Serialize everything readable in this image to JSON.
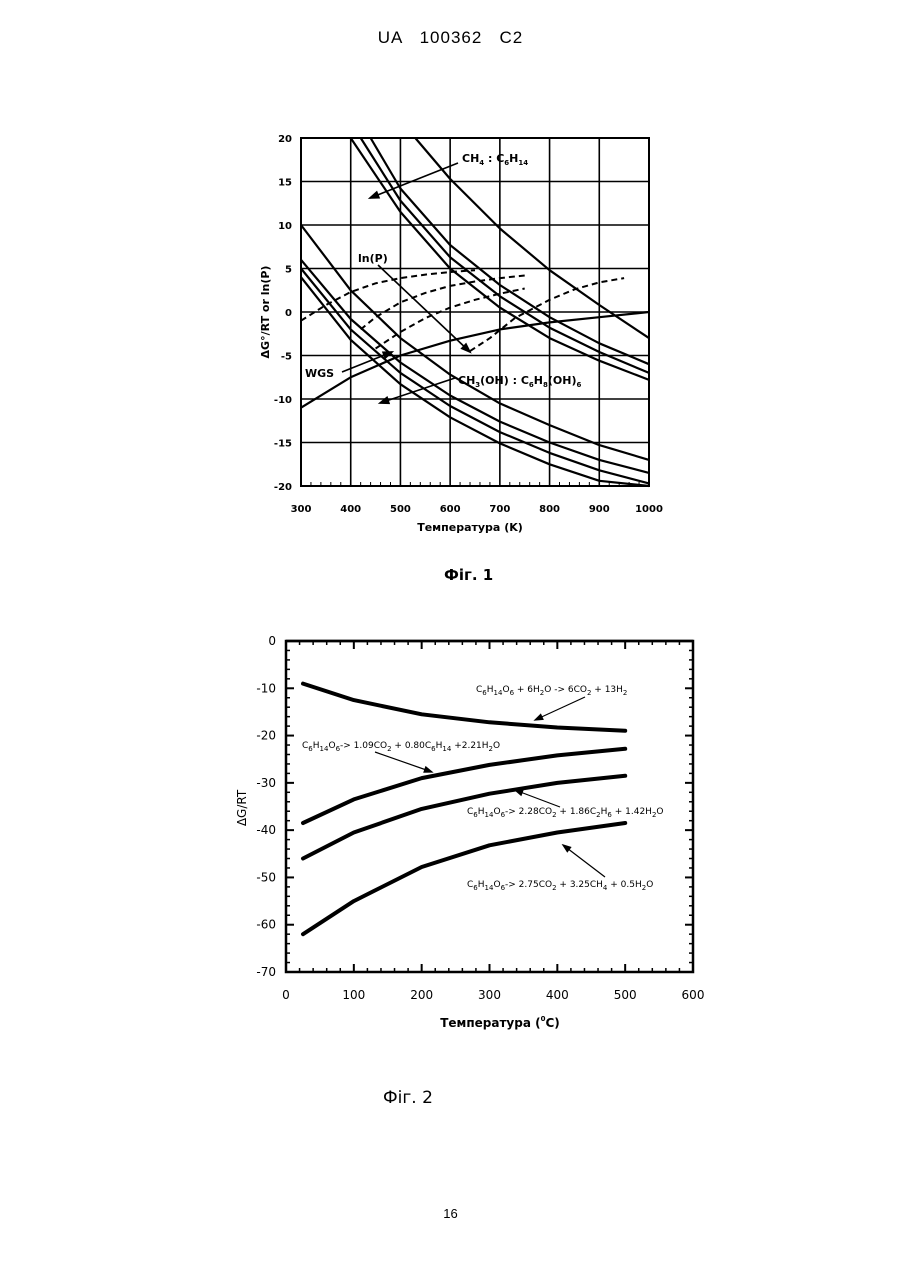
{
  "header": {
    "text": "UA   100362   C2"
  },
  "page_number": "16",
  "figures": [
    {
      "caption": "Фіг. 1"
    },
    {
      "caption": "Фіг. 2"
    }
  ],
  "chart_data": [
    {
      "type": "line",
      "xlabel": "Температура (K)",
      "ylabel": "ΔG°/RT or ln(P)",
      "xlim": [
        300,
        1000
      ],
      "ylim": [
        -20,
        20
      ],
      "xticks": [
        "300",
        "400",
        "500",
        "600",
        "700",
        "800",
        "900",
        "1000"
      ],
      "yticks": [
        "20",
        "15",
        "10",
        "5",
        "0",
        "-5",
        "-10",
        "-15",
        "-20"
      ],
      "grid": true,
      "annotations": [
        {
          "text": "CH",
          "sub": "4",
          "text2": " : C",
          "sub2": "6",
          "text3": "H",
          "sub3": "14"
        },
        {
          "text": "ln(P)"
        },
        {
          "text": "WGS"
        },
        {
          "text": "CH",
          "sub": "3",
          "text2": "(OH) : C",
          "sub2": "6",
          "text3": "H",
          "sub3": "8",
          "text4": "(OH)",
          "sub4": "6"
        }
      ],
      "series": [
        {
          "style": "solid",
          "x": [
            400,
            500,
            600,
            700,
            800,
            900,
            1000
          ],
          "y": [
            20,
            11.5,
            5,
            0.5,
            -3,
            -5.6,
            -7.8
          ]
        },
        {
          "style": "solid",
          "x": [
            420,
            500,
            600,
            700,
            800,
            900,
            1000
          ],
          "y": [
            20,
            12.8,
            6.3,
            1.8,
            -1.8,
            -4.6,
            -7
          ]
        },
        {
          "style": "solid",
          "x": [
            440,
            500,
            600,
            700,
            800,
            900,
            1000
          ],
          "y": [
            20,
            14.2,
            7.7,
            3.1,
            -0.6,
            -3.6,
            -6
          ]
        },
        {
          "style": "solid",
          "x": [
            530,
            600,
            700,
            800,
            900,
            1000
          ],
          "y": [
            20,
            15.3,
            9.6,
            4.8,
            0.8,
            -3
          ]
        },
        {
          "style": "solid",
          "x": [
            300,
            400,
            500,
            600,
            700,
            800,
            900,
            1000
          ],
          "y": [
            10,
            2.5,
            -3,
            -7.2,
            -10.5,
            -13,
            -15.3,
            -17
          ]
        },
        {
          "style": "solid",
          "x": [
            300,
            400,
            500,
            600,
            700,
            800,
            900,
            1000
          ],
          "y": [
            6,
            -0.8,
            -5.8,
            -9.6,
            -12.6,
            -15,
            -17,
            -18.5
          ]
        },
        {
          "style": "solid",
          "x": [
            300,
            400,
            500,
            600,
            700,
            800,
            900,
            1000
          ],
          "y": [
            5,
            -2,
            -7,
            -10.8,
            -13.8,
            -16.2,
            -18.2,
            -19.7
          ]
        },
        {
          "style": "solid",
          "x": [
            300,
            400,
            500,
            600,
            700,
            800,
            900,
            1000
          ],
          "y": [
            4,
            -3.2,
            -8.3,
            -12.1,
            -15.1,
            -17.5,
            -19.4,
            -20
          ]
        },
        {
          "style": "solid",
          "x": [
            300,
            400,
            500,
            600,
            700,
            800,
            900,
            1000
          ],
          "y": [
            -11,
            -7.5,
            -5,
            -3.3,
            -2,
            -1.2,
            -0.6,
            0
          ]
        },
        {
          "style": "dashed",
          "x": [
            300,
            350,
            400,
            450,
            500,
            550,
            600,
            650
          ],
          "y": [
            -1,
            0.8,
            2.3,
            3.3,
            3.9,
            4.3,
            4.6,
            4.8
          ]
        },
        {
          "style": "dashed",
          "x": [
            420,
            450,
            500,
            550,
            600,
            650,
            700,
            750
          ],
          "y": [
            -2,
            -0.6,
            1.1,
            2.2,
            3.0,
            3.5,
            3.9,
            4.2
          ]
        },
        {
          "style": "dashed",
          "x": [
            450,
            500,
            550,
            600,
            650,
            700,
            750
          ],
          "y": [
            -4.2,
            -2.3,
            -0.7,
            0.5,
            1.4,
            2.1,
            2.7
          ]
        },
        {
          "style": "dashed",
          "x": [
            640,
            680,
            730,
            800,
            850,
            900,
            950
          ],
          "y": [
            -4.5,
            -3,
            -0.7,
            1.4,
            2.6,
            3.4,
            3.9
          ]
        }
      ]
    },
    {
      "type": "line",
      "xlabel": "Температура (",
      "xlabel_sup": "0",
      "xlabel_end": "C)",
      "ylabel": "ΔG/RT",
      "xlim": [
        0,
        600
      ],
      "ylim": [
        -70,
        0
      ],
      "xticks": [
        "0",
        "100",
        "200",
        "300",
        "400",
        "500",
        "600"
      ],
      "yticks": [
        "0",
        "-10",
        "-20",
        "-30",
        "-40",
        "-50",
        "-60",
        "-70"
      ],
      "grid": false,
      "annotations": [
        {
          "parts": [
            "C",
            "6",
            "H",
            "14",
            "O",
            "6",
            " + 6H",
            "2",
            "O -> 6CO",
            "2",
            " + 13H",
            "2"
          ]
        },
        {
          "parts": [
            "C",
            "6",
            "H",
            "14",
            "O",
            "6",
            "-> 1.09CO",
            "2",
            " + 0.80C",
            "6",
            "H",
            "14",
            " +2.21H",
            "2",
            "O"
          ]
        },
        {
          "parts": [
            "C",
            "6",
            "H",
            "14",
            "O",
            "6",
            "-> 2.28CO",
            "2",
            " + 1.86C",
            "2",
            "H",
            "6",
            " + 1.42H",
            "2",
            "O"
          ]
        },
        {
          "parts": [
            "C",
            "6",
            "H",
            "14",
            "O",
            "6",
            "-> 2.75CO",
            "2",
            " + 3.25CH",
            "4",
            " + 0.5H",
            "2",
            "O"
          ]
        }
      ],
      "series": [
        {
          "x": [
            25,
            100,
            200,
            300,
            400,
            500
          ],
          "y": [
            -9,
            -12.5,
            -15.5,
            -17.2,
            -18.3,
            -19
          ]
        },
        {
          "x": [
            25,
            100,
            200,
            300,
            400,
            500
          ],
          "y": [
            -38.5,
            -33.5,
            -29,
            -26.2,
            -24.2,
            -22.8
          ]
        },
        {
          "x": [
            25,
            100,
            200,
            300,
            400,
            500
          ],
          "y": [
            -46,
            -40.5,
            -35.5,
            -32.3,
            -30,
            -28.5
          ]
        },
        {
          "x": [
            25,
            100,
            200,
            300,
            400,
            500
          ],
          "y": [
            -62,
            -55,
            -47.8,
            -43.2,
            -40.5,
            -38.5
          ]
        }
      ]
    }
  ]
}
